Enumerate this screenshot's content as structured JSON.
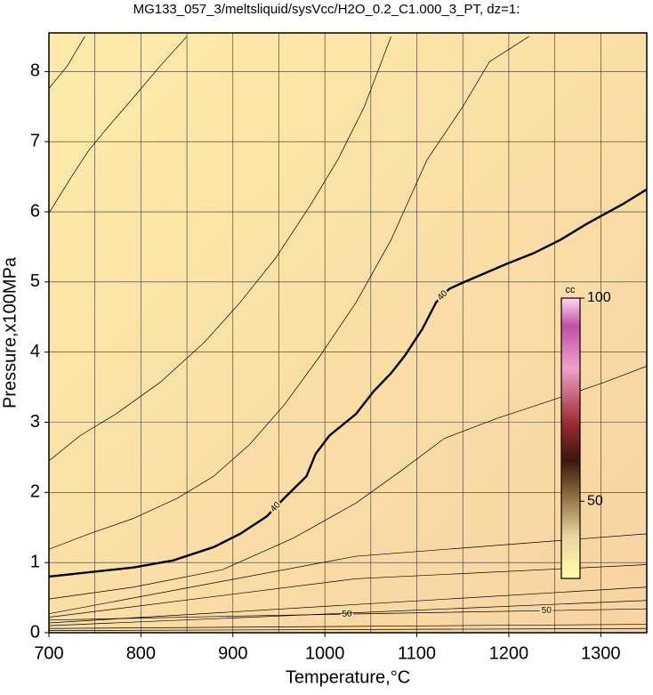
{
  "chart_data": {
    "type": "contour",
    "title": "MG133_057_3/meltsliquid/sysVcc/H2O_0.2_C1.000_3_PT, dz=1:",
    "x_label": "Temperature,°C",
    "y_label": "Pressure,x100MPa",
    "xlim": [
      700,
      1350
    ],
    "ylim": [
      0,
      8.55
    ],
    "xticks": [
      700,
      800,
      900,
      1000,
      1100,
      1200,
      1300
    ],
    "yticks": [
      0,
      1,
      2,
      3,
      4,
      5,
      6,
      7,
      8
    ],
    "xgrid_step": 50,
    "grid": true,
    "contours": [
      {
        "level": 40,
        "emphasis": true,
        "x": [
          700,
          792,
          835,
          879,
          908,
          937,
          956,
          980,
          990,
          1005,
          1034,
          1053,
          1072,
          1087,
          1106,
          1121,
          1135,
          1150,
          1198,
          1227,
          1256,
          1285,
          1324,
          1350
        ],
        "y": [
          0.8,
          0.93,
          1.03,
          1.22,
          1.41,
          1.66,
          1.92,
          2.23,
          2.55,
          2.81,
          3.12,
          3.44,
          3.7,
          3.95,
          4.33,
          4.71,
          4.9,
          4.99,
          5.26,
          5.41,
          5.6,
          5.83,
          6.11,
          6.32
        ]
      },
      {
        "x": [
          700,
          720,
          739
        ],
        "y": [
          7.76,
          8.08,
          8.5
        ]
      },
      {
        "x": [
          700,
          724,
          743,
          763,
          792,
          821,
          850
        ],
        "y": [
          5.98,
          6.49,
          6.87,
          7.19,
          7.63,
          8.08,
          8.5
        ]
      },
      {
        "x": [
          700,
          734,
          773,
          821,
          869,
          908,
          947,
          985,
          1014,
          1043,
          1072
        ],
        "y": [
          2.45,
          2.81,
          3.12,
          3.57,
          4.14,
          4.71,
          5.35,
          6.11,
          6.74,
          7.5,
          8.5
        ]
      },
      {
        "x": [
          700,
          744,
          792,
          840,
          879,
          918,
          956,
          995,
          1034,
          1072,
          1111,
          1150,
          1179,
          1222
        ],
        "y": [
          1.19,
          1.41,
          1.63,
          1.92,
          2.23,
          2.68,
          3.25,
          3.95,
          4.71,
          5.6,
          6.74,
          7.5,
          8.14,
          8.5
        ]
      },
      {
        "x": [
          700,
          792,
          889,
          966,
          1034,
          1082,
          1130,
          1188,
          1246,
          1304,
          1350
        ],
        "y": [
          0.48,
          0.65,
          0.9,
          1.35,
          1.85,
          2.3,
          2.77,
          3.06,
          3.31,
          3.57,
          3.8
        ]
      },
      {
        "level": 50,
        "x": [
          700,
          916,
          1132,
          1350
        ],
        "y": [
          0.18,
          0.24,
          0.29,
          0.34
        ]
      },
      {
        "x": [
          700,
          1034,
          1350
        ],
        "y": [
          0.27,
          1.09,
          1.41
        ]
      },
      {
        "x": [
          700,
          1034,
          1350
        ],
        "y": [
          0.22,
          0.77,
          0.97
        ]
      },
      {
        "x": [
          700,
          1350
        ],
        "y": [
          0.14,
          0.65
        ]
      },
      {
        "x": [
          700,
          1350
        ],
        "y": [
          0.1,
          0.46
        ]
      },
      {
        "x": [
          700,
          1350
        ],
        "y": [
          0.06,
          0.12
        ]
      },
      {
        "x": [
          700,
          1350
        ],
        "y": [
          0.03,
          0.06
        ]
      }
    ],
    "colorbar": {
      "label": "cc",
      "lim": [
        31,
        100
      ],
      "ticks": [
        50,
        100
      ]
    }
  }
}
